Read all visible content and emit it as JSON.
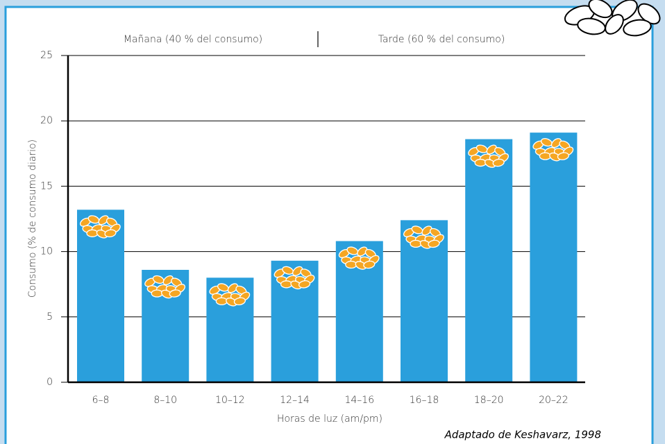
{
  "chart_data": {
    "type": "bar",
    "morning_label": "Mañana (40 % del consumo)",
    "afternoon_label": "Tarde (60 % del consumo)",
    "ylabel": "Consumo (% de consumo diario)",
    "xlabel": "Horas de luz (am/pm)",
    "source": "Adaptado de Keshavarz, 1998",
    "categories": [
      "6–8",
      "8–10",
      "10–12",
      "12–14",
      "14–16",
      "16–18",
      "18–20",
      "20–22"
    ],
    "values": [
      13.2,
      8.6,
      8.0,
      9.3,
      10.8,
      12.4,
      18.6,
      19.1
    ],
    "color": "#2a9fdc",
    "ylim": [
      0,
      25
    ],
    "yticks": [
      0,
      5,
      10,
      15,
      20,
      25
    ],
    "grid": true
  }
}
